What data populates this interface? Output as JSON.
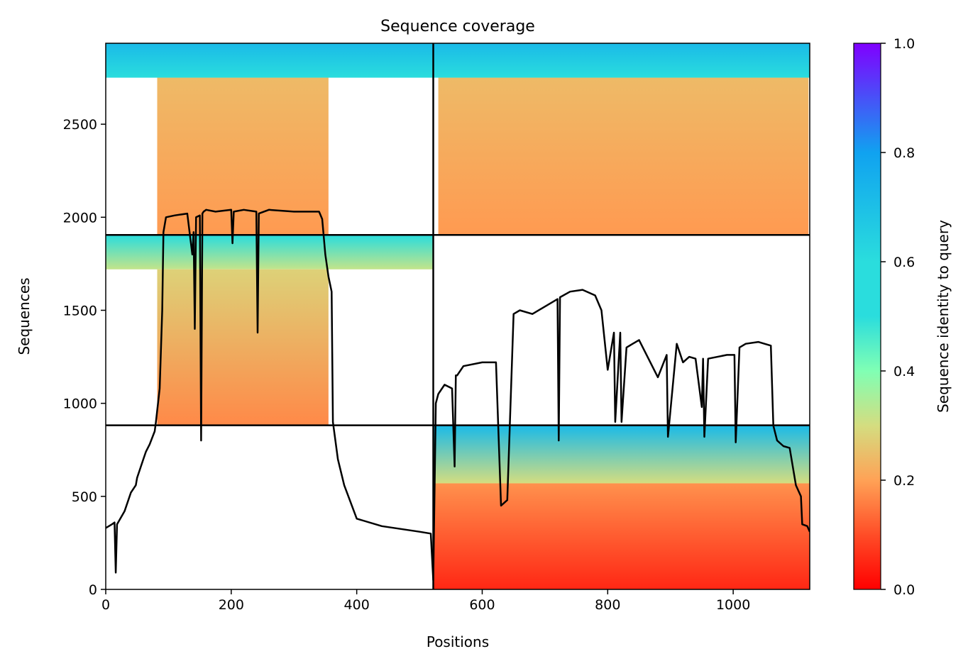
{
  "chart_data": {
    "type": "heatmap",
    "title": "Sequence coverage",
    "xlabel": "Positions",
    "ylabel": "Sequences",
    "xlim": [
      0,
      1122
    ],
    "ylim": [
      0,
      2935
    ],
    "x_ticks": [
      0,
      200,
      400,
      600,
      800,
      1000
    ],
    "y_ticks": [
      0,
      500,
      1000,
      1500,
      2000,
      2500
    ],
    "colorbar": {
      "label": "Sequence identity to query",
      "range": [
        0,
        1
      ],
      "ticks": [
        "0.0",
        "0.2",
        "0.4",
        "0.6",
        "0.8",
        "1.0"
      ],
      "colormap": "rainbow_r",
      "stops": [
        {
          "v": 0.0,
          "color": "#ff0000"
        },
        {
          "v": 0.1,
          "color": "#ff4d27"
        },
        {
          "v": 0.2,
          "color": "#ffa256"
        },
        {
          "v": 0.3,
          "color": "#d4dd80"
        },
        {
          "v": 0.4,
          "color": "#80ffb4"
        },
        {
          "v": 0.5,
          "color": "#2adddd"
        },
        {
          "v": 0.6,
          "color": "#2adddd"
        },
        {
          "v": 0.8,
          "color": "#10a2f0"
        },
        {
          "v": 1.0,
          "color": "#8000ff"
        }
      ]
    },
    "dividers": {
      "x": [
        522
      ],
      "y": [
        882,
        1905
      ]
    },
    "blocks": [
      {
        "x0": 0,
        "x1": 522,
        "y0": 1905,
        "y1": 2935,
        "bands": [
          {
            "y0": 2750,
            "y1": 2935,
            "x0": 0,
            "x1": 522,
            "id_top": 0.72,
            "id_bottom": 0.5
          },
          {
            "y0": 1905,
            "y1": 2750,
            "x0": 82,
            "x1": 355,
            "id_top": 0.24,
            "id_bottom": 0.19
          }
        ]
      },
      {
        "x0": 522,
        "x1": 1122,
        "y0": 1905,
        "y1": 2935,
        "bands": [
          {
            "y0": 2750,
            "y1": 2935,
            "x0": 522,
            "x1": 1122,
            "id_top": 0.72,
            "id_bottom": 0.5
          },
          {
            "y0": 1905,
            "y1": 2750,
            "x0": 530,
            "x1": 1120,
            "id_top": 0.24,
            "id_bottom": 0.19
          }
        ]
      },
      {
        "x0": 0,
        "x1": 522,
        "y0": 882,
        "y1": 1905,
        "bands": [
          {
            "y0": 1720,
            "y1": 1905,
            "x0": 0,
            "x1": 522,
            "id_top": 0.6,
            "id_bottom": 0.32
          },
          {
            "y0": 882,
            "y1": 1720,
            "x0": 82,
            "x1": 355,
            "id_top": 0.28,
            "id_bottom": 0.17
          }
        ]
      },
      {
        "x0": 522,
        "x1": 1122,
        "y0": 0,
        "y1": 882,
        "bands": [
          {
            "y0": 570,
            "y1": 882,
            "x0": 522,
            "x1": 1122,
            "id_top": 0.72,
            "id_bottom": 0.3
          },
          {
            "y0": 0,
            "y1": 570,
            "x0": 522,
            "x1": 1122,
            "id_top": 0.18,
            "id_bottom": 0.05
          }
        ]
      }
    ],
    "coverage_line": {
      "x": [
        0,
        10,
        14,
        16,
        18,
        30,
        40,
        48,
        50,
        60,
        64,
        70,
        78,
        80,
        86,
        90,
        92,
        96,
        110,
        130,
        138,
        140,
        142,
        144,
        150,
        152,
        154,
        156,
        160,
        175,
        200,
        202,
        204,
        220,
        240,
        242,
        244,
        260,
        300,
        340,
        345,
        350,
        355,
        360,
        362,
        370,
        380,
        400,
        440,
        500,
        518,
        522,
        526,
        530,
        540,
        552,
        556,
        558,
        560,
        570,
        600,
        622,
        630,
        640,
        650,
        660,
        680,
        720,
        722,
        724,
        740,
        760,
        780,
        790,
        800,
        810,
        812,
        820,
        822,
        830,
        850,
        880,
        894,
        896,
        910,
        920,
        930,
        940,
        950,
        952,
        954,
        960,
        990,
        1002,
        1004,
        1010,
        1020,
        1040,
        1050,
        1060,
        1064,
        1070,
        1080,
        1090,
        1100,
        1108,
        1110,
        1118,
        1122
      ],
      "y": [
        330,
        350,
        360,
        90,
        350,
        420,
        520,
        560,
        600,
        700,
        740,
        780,
        850,
        900,
        1080,
        1500,
        1920,
        2000,
        2010,
        2020,
        1800,
        1920,
        1400,
        2000,
        2010,
        800,
        2020,
        2030,
        2040,
        2030,
        2040,
        1860,
        2030,
        2040,
        2030,
        1380,
        2020,
        2040,
        2030,
        2030,
        1990,
        1800,
        1680,
        1600,
        900,
        700,
        560,
        380,
        340,
        310,
        300,
        50,
        1000,
        1050,
        1100,
        1080,
        660,
        1150,
        1150,
        1200,
        1220,
        1220,
        450,
        480,
        1480,
        1500,
        1480,
        1560,
        800,
        1570,
        1600,
        1610,
        1580,
        1500,
        1180,
        1380,
        900,
        1380,
        900,
        1300,
        1340,
        1140,
        1260,
        820,
        1320,
        1220,
        1250,
        1240,
        980,
        1240,
        820,
        1240,
        1260,
        1260,
        790,
        1300,
        1320,
        1330,
        1320,
        1310,
        880,
        800,
        770,
        760,
        560,
        500,
        350,
        340,
        310
      ]
    }
  }
}
